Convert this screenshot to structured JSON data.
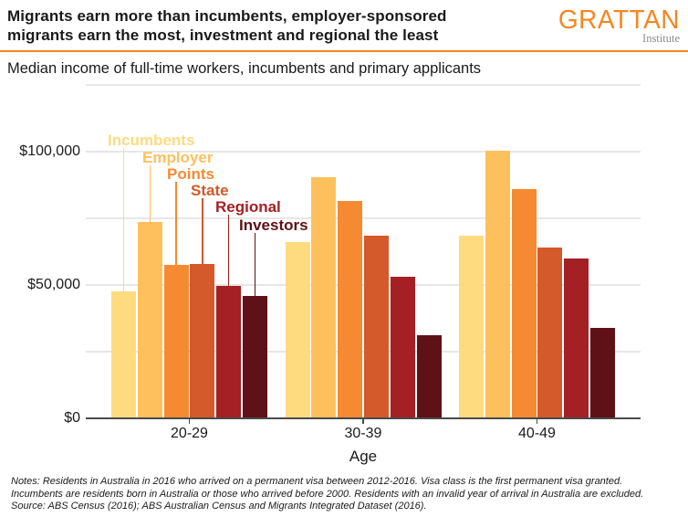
{
  "header": {
    "title": "Migrants earn more than incumbents, employer-sponsored migrants earn the most, investment and regional the least",
    "logo": {
      "name": "GRATTAN",
      "subtitle": "Institute"
    }
  },
  "subtitle": "Median income of full-time workers, incumbents and primary applicants",
  "chart_data": {
    "type": "bar",
    "title": "Migrants earn more than incumbents, employer-sponsored migrants earn the most, investment and regional the least",
    "subtitle": "Median income of full-time workers, incumbents and primary applicants",
    "categories": [
      "20-29",
      "30-39",
      "40-49"
    ],
    "series": [
      {
        "name": "Incumbents",
        "color": "#FFDB80",
        "values": [
          47500,
          66000,
          68500
        ]
      },
      {
        "name": "Employer",
        "color": "#FEC05C",
        "values": [
          73500,
          90500,
          100500
        ]
      },
      {
        "name": "Points",
        "color": "#F68A32",
        "values": [
          57500,
          81500,
          86000
        ]
      },
      {
        "name": "State",
        "color": "#D4592B",
        "values": [
          58000,
          68500,
          64000
        ]
      },
      {
        "name": "Regional",
        "color": "#A42025",
        "values": [
          49500,
          53000,
          60000
        ]
      },
      {
        "name": "Investors",
        "color": "#5E1116",
        "values": [
          46000,
          31000,
          34000
        ]
      }
    ],
    "xlabel": "Age",
    "ylabel": "",
    "ylim": [
      0,
      125000
    ],
    "yticks": [
      {
        "value": 0,
        "label": "$0"
      },
      {
        "value": 50000,
        "label": "$50,000"
      },
      {
        "value": 100000,
        "label": "$100,000"
      }
    ],
    "gridline_interval": 25000,
    "grid": true,
    "legend_position": "inline-labels-over-first-group",
    "accent_color": "#f6861f"
  },
  "notes": "Notes: Residents in Australia in 2016 who arrived on a permanent visa between 2012-2016. Visa class is the first permanent visa granted. Incumbents are residents born in Australia or those who arrived before 2000. Residents with an invalid year of arrival in Australia are excluded. Source: ABS Census (2016); ABS Australian Census and Migrants Integrated Dataset (2016)."
}
